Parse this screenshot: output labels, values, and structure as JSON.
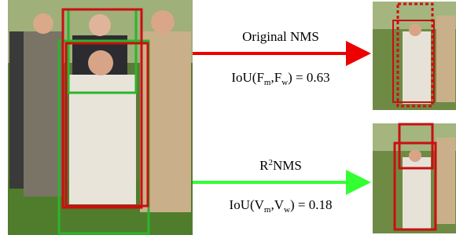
{
  "top": {
    "label": "Original NMS",
    "formula": [
      "IoU(F",
      "m",
      ",F",
      "w",
      ") = 0.63"
    ]
  },
  "bottom": {
    "label": [
      "R",
      "2",
      "NMS"
    ],
    "formula": [
      "IoU(V",
      "m",
      ",V",
      "w",
      ") = 0.18"
    ]
  }
}
